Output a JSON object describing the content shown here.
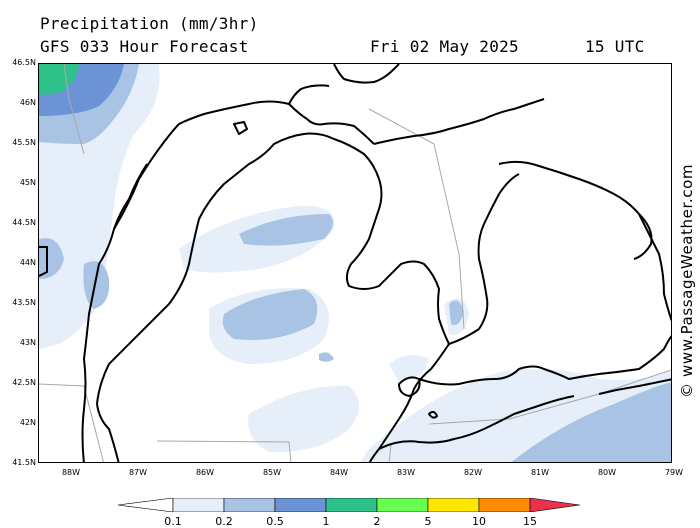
{
  "header": {
    "title": "Precipitation (mm/3hr)",
    "subtitle": "GFS 033 Hour Forecast",
    "date": "Fri 02 May 2025",
    "time": "15 UTC"
  },
  "lat_labels": [
    "46.5N",
    "46N",
    "45.5N",
    "45N",
    "44.5N",
    "44N",
    "43.5N",
    "43N",
    "42.5N",
    "42N",
    "41.5N"
  ],
  "lon_labels": [
    "88W",
    "87W",
    "86W",
    "85W",
    "84W",
    "83W",
    "82W",
    "81W",
    "80W",
    "79W"
  ],
  "watermark": "© www.PassageWeather.com",
  "legend": {
    "ticks": [
      "0.1",
      "0.2",
      "0.5",
      "1",
      "2",
      "5",
      "10",
      "15"
    ],
    "colors": [
      "#ffffff",
      "#e6eef9",
      "#a9c3e4",
      "#6b93d6",
      "#2ec28a",
      "#66ff4d",
      "#ffe600",
      "#ff8c00",
      "#e8334a"
    ]
  },
  "colors": {
    "land_outline": "#000000",
    "border": "#a8a8a8",
    "precip_very_light": "#e6eef9",
    "precip_light": "#a9c3e4",
    "precip_moderate": "#6b93d6",
    "precip_heavy": "#2ec28a"
  }
}
